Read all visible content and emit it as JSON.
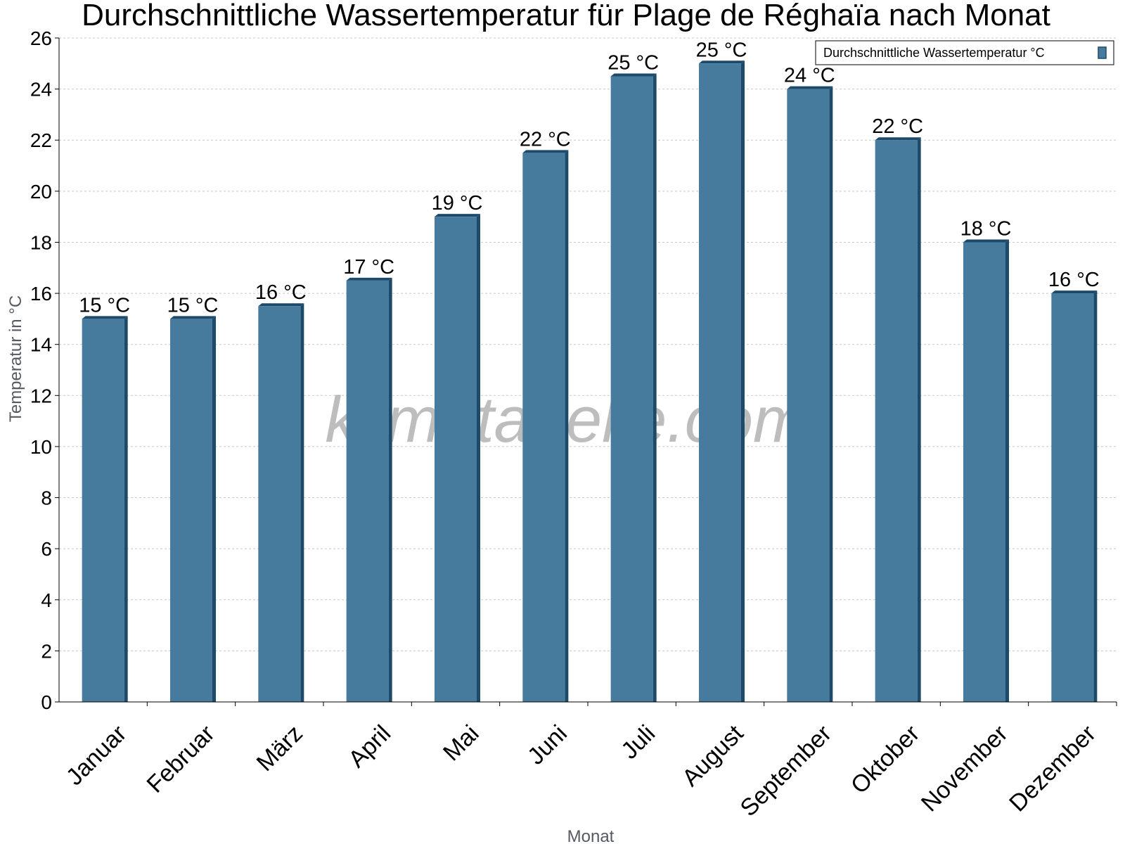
{
  "chart_data": {
    "type": "bar",
    "title": "Durchschnittliche Wassertemperatur für Plage de Réghaïa nach Monat",
    "xlabel": "Monat",
    "ylabel": "Temperatur in °C",
    "categories": [
      "Januar",
      "Februar",
      "März",
      "April",
      "Mai",
      "Juni",
      "Juli",
      "August",
      "September",
      "Oktober",
      "November",
      "Dezember"
    ],
    "series": [
      {
        "name": "Durchschnittliche Wassertemperatur °C",
        "values": [
          15.0,
          15.0,
          15.5,
          16.5,
          19.0,
          21.5,
          24.5,
          25.0,
          24.0,
          22.0,
          18.0,
          16.0
        ],
        "labels": [
          "15 °C",
          "15 °C",
          "16 °C",
          "17 °C",
          "19 °C",
          "22 °C",
          "25 °C",
          "25 °C",
          "24 °C",
          "22 °C",
          "18 °C",
          "16 °C"
        ],
        "color": "#477b9d",
        "edge_color": "#1d4a6b"
      }
    ],
    "ylim": [
      0,
      26
    ],
    "yticks": [
      0,
      2,
      4,
      6,
      8,
      10,
      12,
      14,
      16,
      18,
      20,
      22,
      24,
      26
    ],
    "grid": true,
    "legend_position": "top-right"
  },
  "watermark": "klimatabelle.com"
}
